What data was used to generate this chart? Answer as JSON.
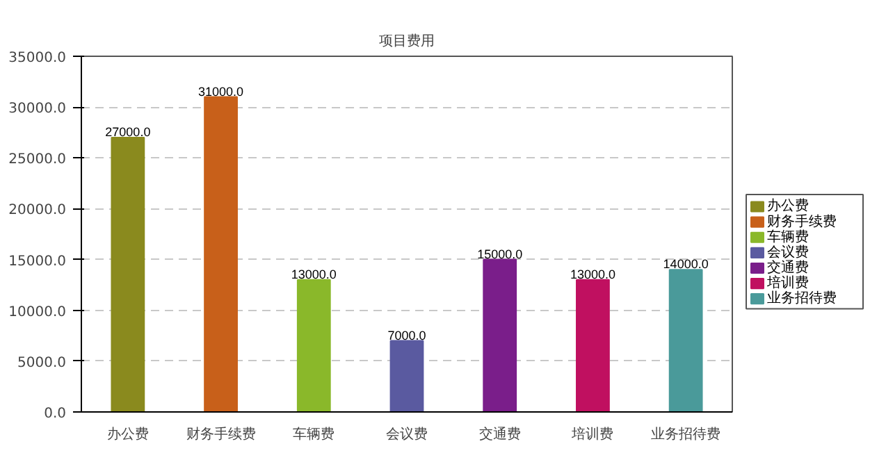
{
  "chart_data": {
    "type": "bar",
    "title": "项目费用",
    "categories": [
      "办公费",
      "财务手续费",
      "车辆费",
      "会议费",
      "交通费",
      "培训费",
      "业务招待费"
    ],
    "series": [
      {
        "name": "办公费",
        "color": "#8a8a1e",
        "values": [
          27000,
          null,
          null,
          null,
          null,
          null,
          null
        ],
        "value_labels": [
          "27000.0",
          null,
          null,
          null,
          null,
          null,
          null
        ]
      },
      {
        "name": "财务手续费",
        "color": "#c8601a",
        "values": [
          null,
          31000,
          null,
          null,
          null,
          null,
          null
        ],
        "value_labels": [
          null,
          "31000.0",
          null,
          null,
          null,
          null,
          null
        ]
      },
      {
        "name": "车辆费",
        "color": "#8ab82a",
        "values": [
          null,
          null,
          13000,
          null,
          null,
          null,
          null
        ],
        "value_labels": [
          null,
          null,
          "13000.0",
          null,
          null,
          null,
          null
        ]
      },
      {
        "name": "会议费",
        "color": "#5a5aa0",
        "values": [
          null,
          null,
          null,
          7000,
          null,
          null,
          null
        ],
        "value_labels": [
          null,
          null,
          null,
          "7000.0",
          null,
          null,
          null
        ]
      },
      {
        "name": "交通费",
        "color": "#7a1e8a",
        "values": [
          null,
          null,
          null,
          null,
          15000,
          null,
          null
        ],
        "value_labels": [
          null,
          null,
          null,
          null,
          "15000.0",
          null,
          null
        ]
      },
      {
        "name": "培训费",
        "color": "#c01060",
        "values": [
          null,
          null,
          null,
          null,
          null,
          13000,
          null
        ],
        "value_labels": [
          null,
          null,
          null,
          null,
          null,
          "13000.0",
          null
        ]
      },
      {
        "name": "业务招待费",
        "color": "#4a9a9a",
        "values": [
          null,
          null,
          null,
          null,
          null,
          null,
          14000
        ],
        "value_labels": [
          null,
          null,
          null,
          null,
          null,
          null,
          "14000.0"
        ]
      }
    ],
    "ylim": [
      0,
      35000
    ],
    "yticks": [
      {
        "value": 0,
        "label": "0.0"
      },
      {
        "value": 5000,
        "label": "5000.0"
      },
      {
        "value": 10000,
        "label": "10000.0"
      },
      {
        "value": 15000,
        "label": "15000.0"
      },
      {
        "value": 20000,
        "label": "20000.0"
      },
      {
        "value": 25000,
        "label": "25000.0"
      },
      {
        "value": 30000,
        "label": "30000.0"
      },
      {
        "value": 35000,
        "label": "35000.0"
      }
    ],
    "grid": "y",
    "legend": "right"
  }
}
